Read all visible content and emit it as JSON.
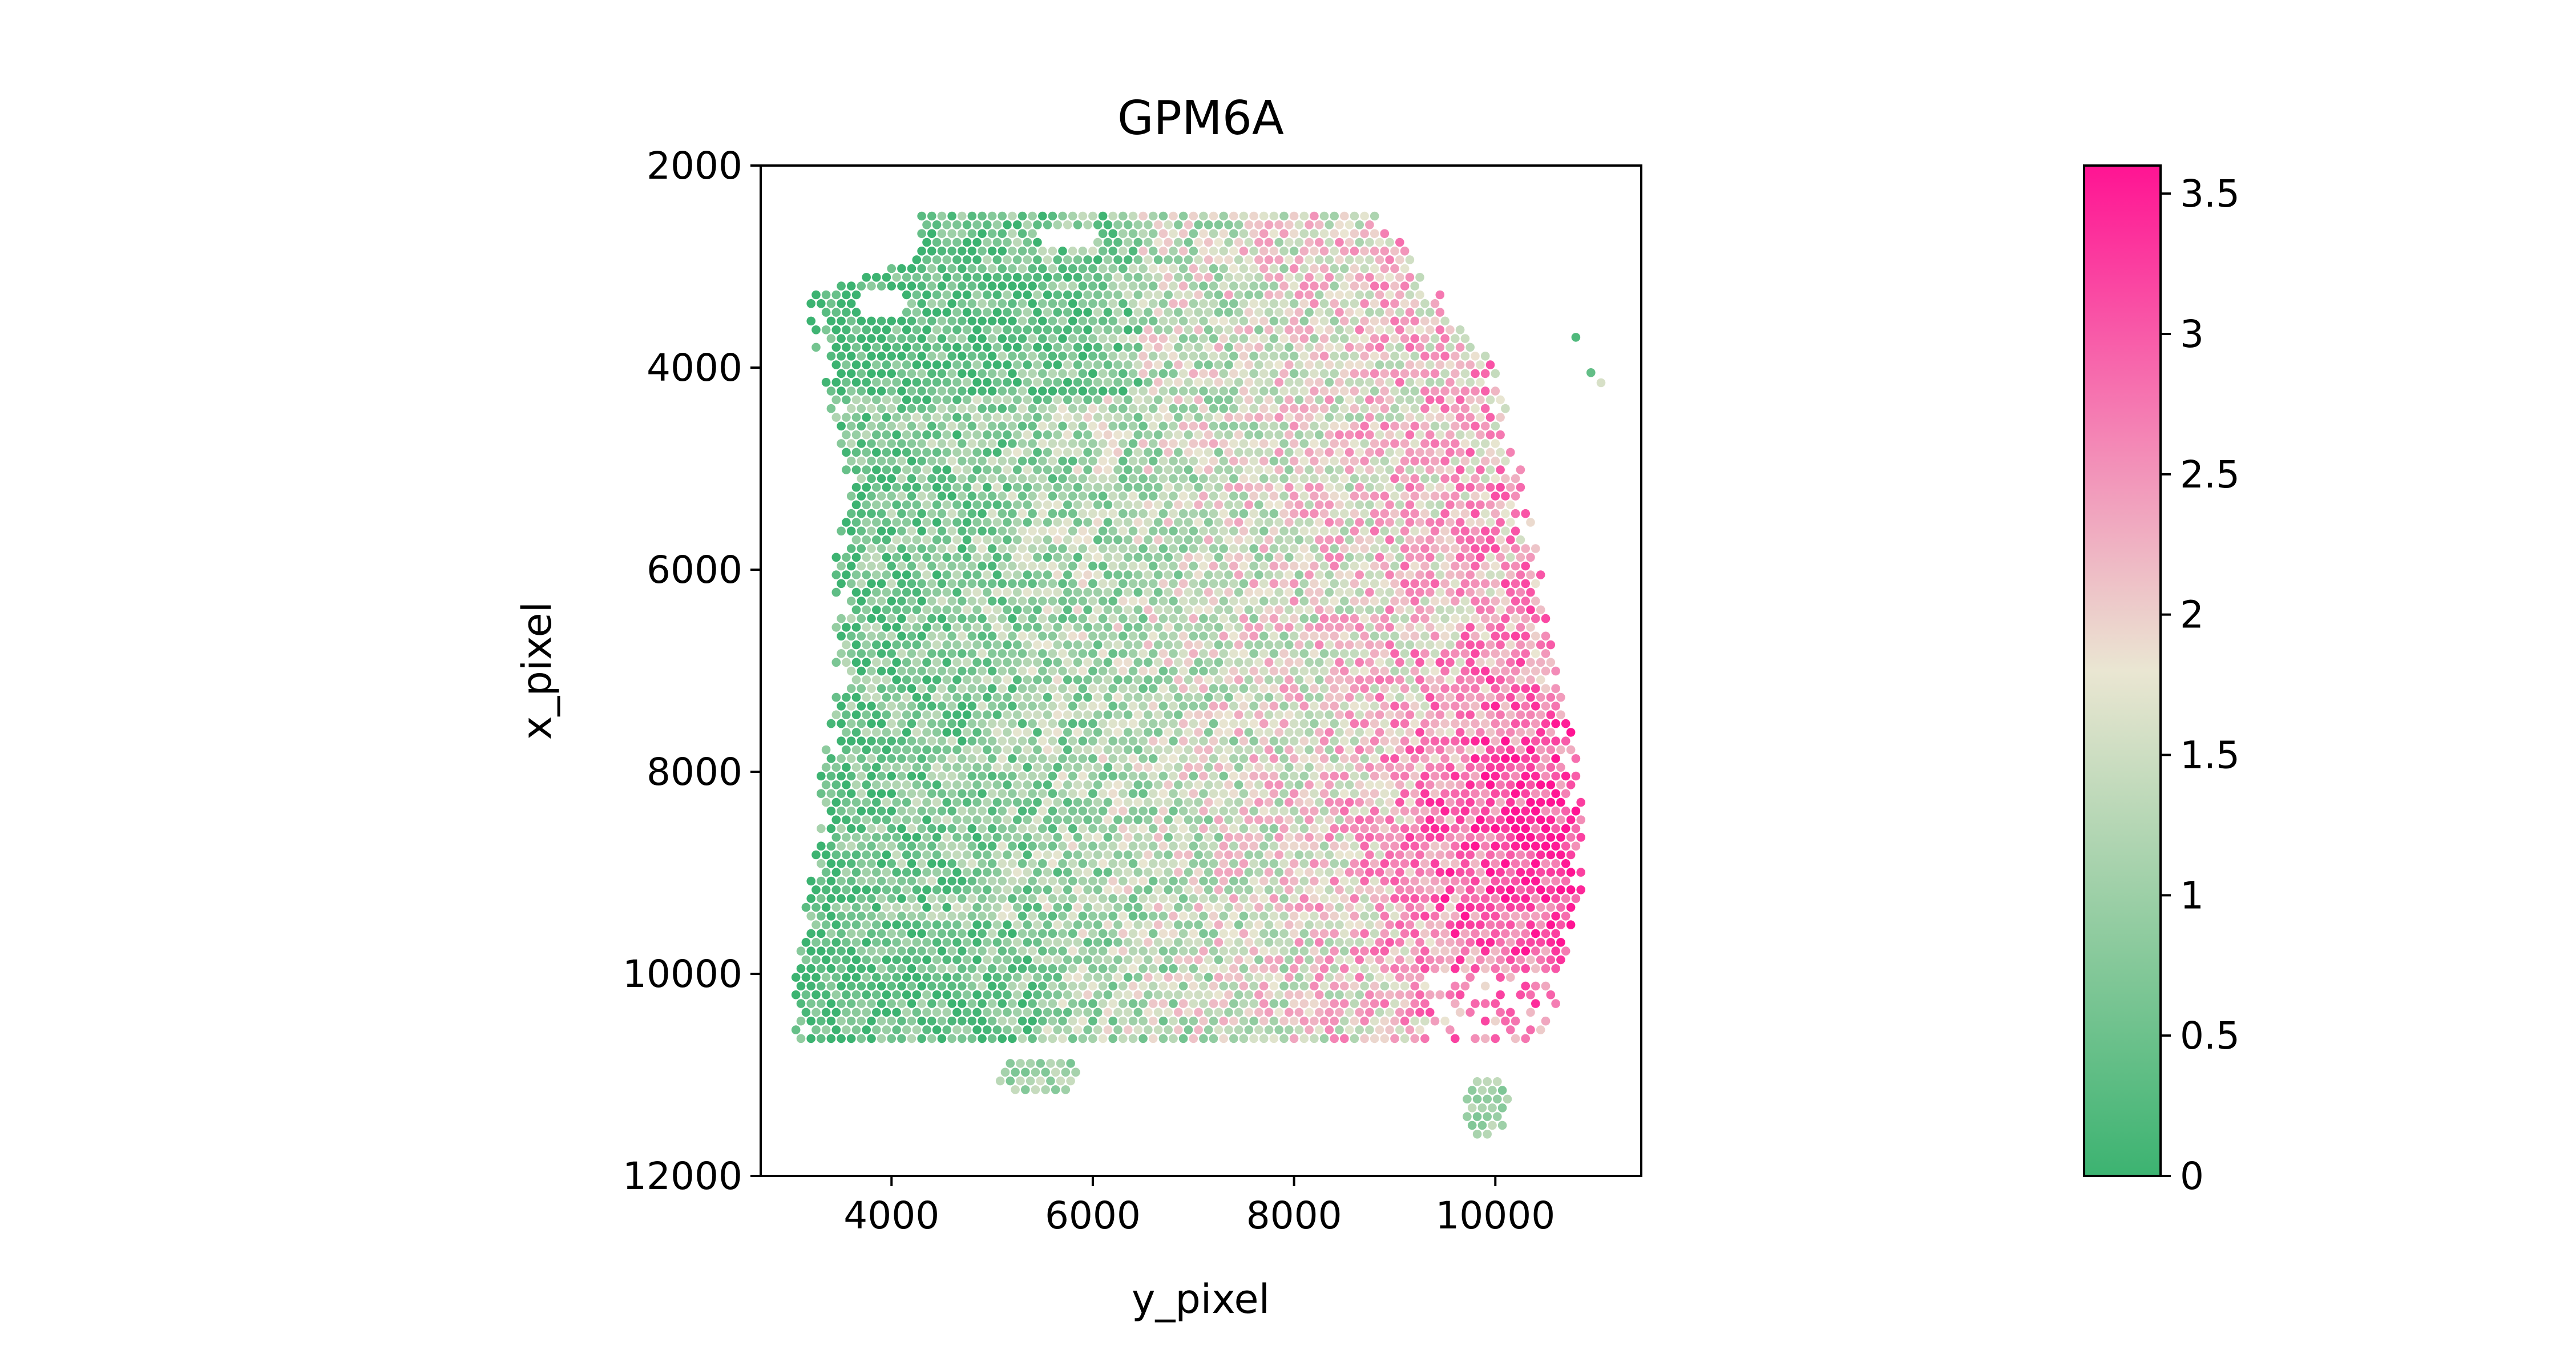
{
  "chart_data": {
    "type": "scatter",
    "title": "GPM6A",
    "xlabel": "y_pixel",
    "ylabel": "x_pixel",
    "xlim": [
      2700,
      11450
    ],
    "ylim": [
      12000,
      2000
    ],
    "y_inverted": true,
    "xticks": [
      4000,
      6000,
      8000,
      10000
    ],
    "yticks": [
      2000,
      4000,
      6000,
      8000,
      10000,
      12000
    ],
    "grid": false,
    "marker": "hexagonal spots",
    "spot_count_shown": "approx. 3000",
    "colorbar": {
      "min": 0,
      "max": 3.6,
      "ticks": [
        0,
        0.5,
        1,
        1.5,
        2,
        2.5,
        3,
        3.5
      ],
      "colors": [
        "#3cb371",
        "#eae6d2",
        "#ff1493"
      ]
    },
    "expression_pattern": "low (green) toward the left and upper-left of the tissue, high (pink) toward the right edge, strongest near y_pixel 10300, x_pixel 8800"
  }
}
